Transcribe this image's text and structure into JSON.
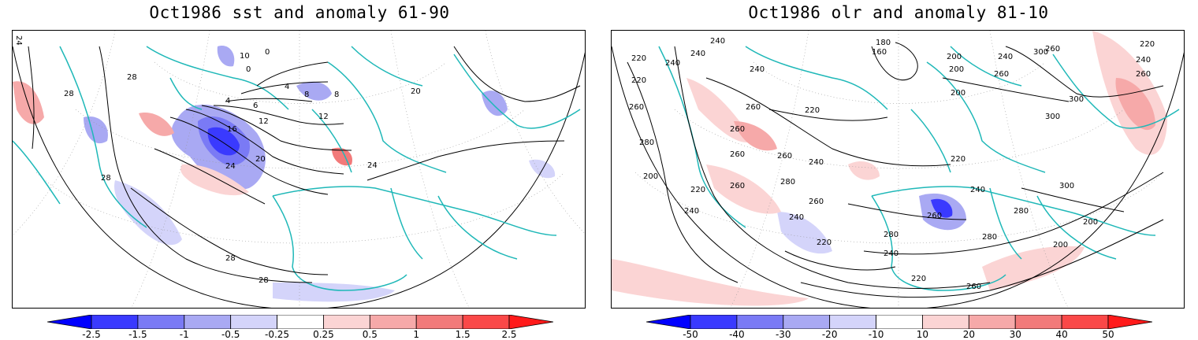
{
  "left_panel": {
    "title": "Oct1986 sst and anomaly 61-90",
    "contour_labels": [
      "24",
      "28",
      "28",
      "28",
      "10",
      "0",
      "0",
      "4",
      "8",
      "8",
      "4",
      "6",
      "12",
      "12",
      "16",
      "20",
      "24",
      "24",
      "28",
      "28",
      "20"
    ],
    "colorbar": {
      "labels": [
        "-2.5",
        "-1.5",
        "-1",
        "-0.5",
        "-0.25",
        "0.25",
        "0.5",
        "1",
        "1.5",
        "2.5"
      ],
      "colors": [
        "#0000ff",
        "#3a3afe",
        "#7a7af5",
        "#a9a9f3",
        "#d4d4fa",
        "#ffffff",
        "#fbd4d4",
        "#f6a9a9",
        "#f27a7a",
        "#fa4848",
        "#ff1a1a"
      ]
    }
  },
  "right_panel": {
    "title": "Oct1986 olr and anomaly 81-10",
    "contour_labels": [
      "240",
      "240",
      "220",
      "240",
      "220",
      "260",
      "240",
      "180",
      "160",
      "200",
      "240",
      "260",
      "220",
      "200",
      "300",
      "240",
      "260",
      "200",
      "300",
      "260",
      "260",
      "220",
      "260",
      "280",
      "200",
      "220",
      "240",
      "260",
      "260",
      "240",
      "300",
      "260",
      "280",
      "240",
      "220",
      "260",
      "280",
      "260",
      "280",
      "300",
      "240",
      "220",
      "200",
      "280",
      "240",
      "220",
      "260",
      "200"
    ],
    "colorbar": {
      "labels": [
        "-50",
        "-40",
        "-30",
        "-20",
        "-10",
        "10",
        "20",
        "30",
        "40",
        "50"
      ],
      "colors": [
        "#0000ff",
        "#3a3afe",
        "#7a7af5",
        "#a9a9f3",
        "#d4d4fa",
        "#ffffff",
        "#fbd4d4",
        "#f6a9a9",
        "#f27a7a",
        "#fa4848",
        "#ff1a1a"
      ]
    }
  }
}
